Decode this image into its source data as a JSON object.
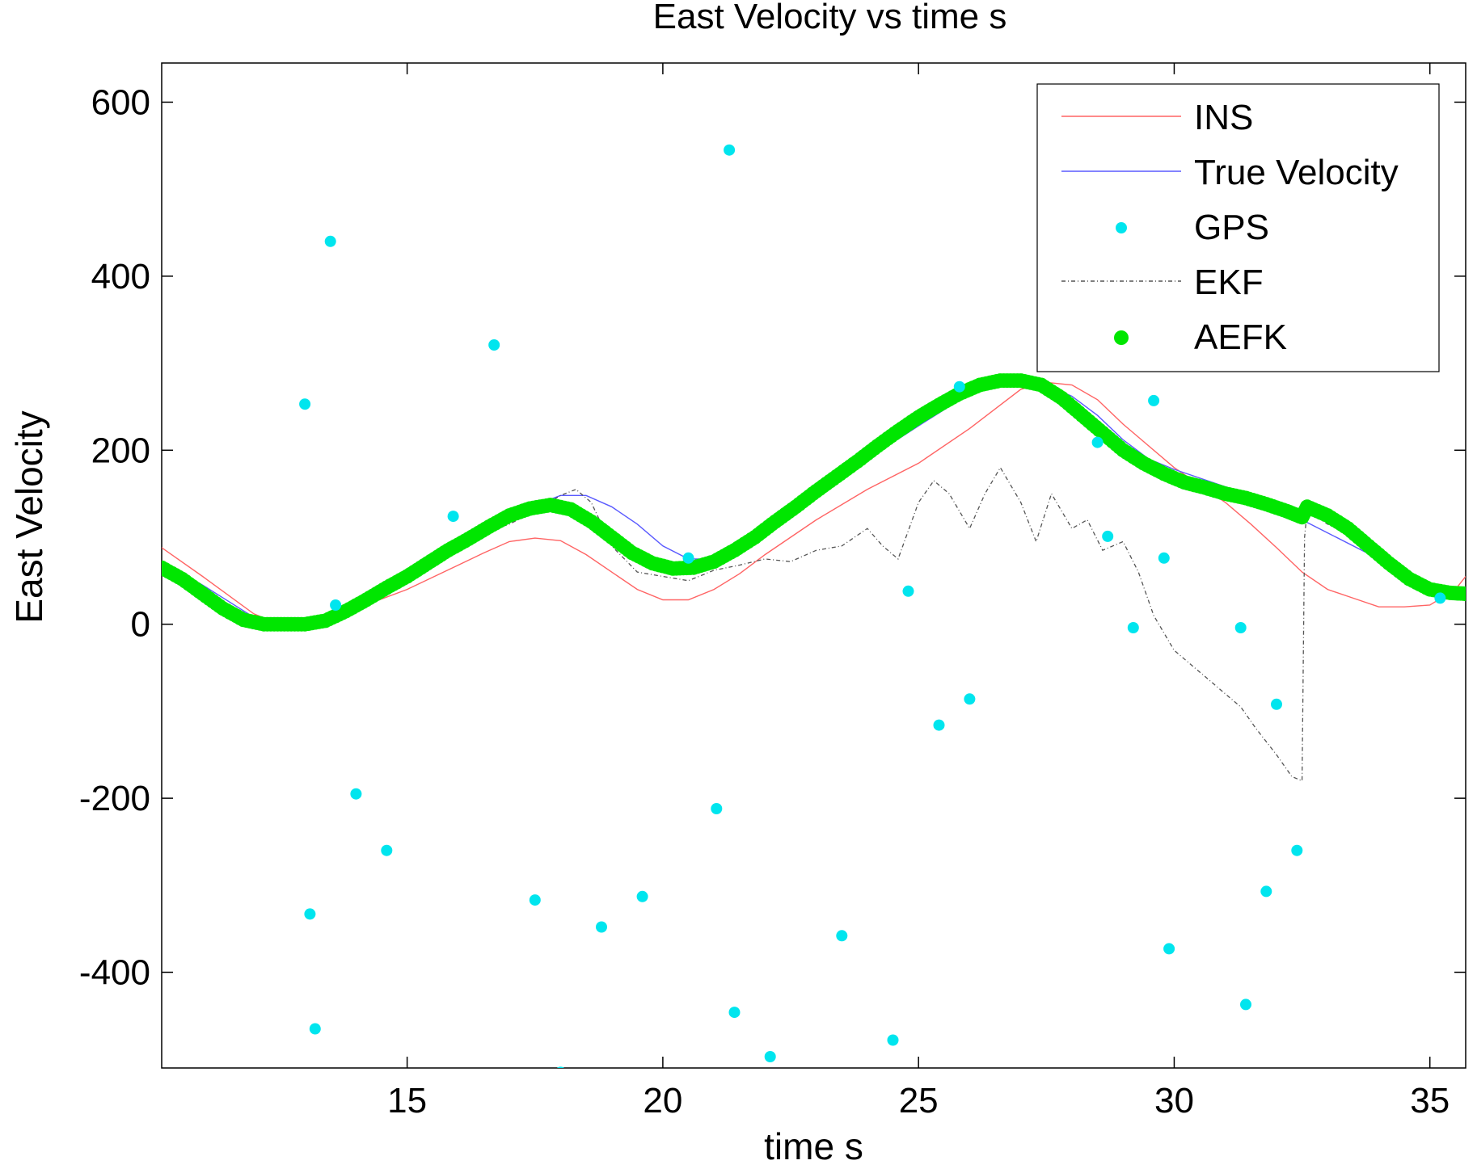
{
  "chart_data": {
    "type": "line",
    "title": "East Velocity vs time s",
    "xlabel": "time s",
    "ylabel": "East Velocity",
    "xlim": [
      10.2,
      35.7
    ],
    "ylim": [
      -510,
      645
    ],
    "xticks": [
      15,
      20,
      25,
      30,
      35
    ],
    "yticks": [
      600,
      400,
      200,
      0,
      -200,
      -400
    ],
    "grid": false,
    "legend_position": "top-right",
    "series": [
      {
        "name": "INS",
        "style": "line",
        "color": "#ff6464",
        "x": [
          10.2,
          11.0,
          12.0,
          12.5,
          13.0,
          13.5,
          14.0,
          15.0,
          16.0,
          16.5,
          17.0,
          17.5,
          18.0,
          18.5,
          19.0,
          19.5,
          20.0,
          20.5,
          21.0,
          21.5,
          22.0,
          23.0,
          24.0,
          25.0,
          26.0,
          27.0,
          27.5,
          28.0,
          28.5,
          29.0,
          30.0,
          31.0,
          31.5,
          32.0,
          32.5,
          33.0,
          33.5,
          34.0,
          34.5,
          35.0,
          35.5,
          35.7
        ],
        "y": [
          88,
          55,
          12,
          0,
          0,
          5,
          18,
          40,
          68,
          82,
          95,
          99,
          96,
          80,
          60,
          40,
          28,
          28,
          40,
          58,
          80,
          120,
          155,
          185,
          225,
          270,
          278,
          275,
          258,
          230,
          180,
          140,
          115,
          88,
          60,
          40,
          30,
          20,
          20,
          22,
          40,
          55
        ]
      },
      {
        "name": "True Velocity",
        "style": "line",
        "color": "#5a5aff",
        "x": [
          10.2,
          11.0,
          12.0,
          12.5,
          13.0,
          13.5,
          14.0,
          15.0,
          16.0,
          17.0,
          17.5,
          18.0,
          18.5,
          19.0,
          19.5,
          20.0,
          20.5,
          21.0,
          21.5,
          22.0,
          23.0,
          24.0,
          25.0,
          26.0,
          26.5,
          27.0,
          27.5,
          28.0,
          28.5,
          29.0,
          29.5,
          30.0,
          31.0,
          32.0,
          32.5,
          33.0,
          34.0,
          34.5,
          35.0,
          35.7
        ],
        "y": [
          72,
          45,
          8,
          0,
          0,
          5,
          18,
          50,
          90,
          125,
          137,
          148,
          148,
          135,
          115,
          90,
          75,
          75,
          85,
          100,
          145,
          190,
          228,
          265,
          275,
          278,
          275,
          262,
          240,
          212,
          190,
          178,
          158,
          140,
          120,
          105,
          75,
          55,
          40,
          35
        ]
      },
      {
        "name": "GPS",
        "style": "markers",
        "color": "#00e5ee",
        "x": [
          13.0,
          13.1,
          13.2,
          13.5,
          13.6,
          14.0,
          14.6,
          15.9,
          16.7,
          17.5,
          18.0,
          18.8,
          19.6,
          20.5,
          21.05,
          21.3,
          21.4,
          22.1,
          23.5,
          24.5,
          24.8,
          25.4,
          25.8,
          26.0,
          28.5,
          28.7,
          29.2,
          29.6,
          29.8,
          29.9,
          31.3,
          31.4,
          31.8,
          32.0,
          32.4,
          35.2
        ],
        "y": [
          253,
          -333,
          -465,
          440,
          22,
          -195,
          -260,
          124,
          321,
          -317,
          -515,
          -348,
          -313,
          76,
          -212,
          545,
          -446,
          -497,
          -358,
          -478,
          38,
          -116,
          273,
          -86,
          209,
          101,
          -4,
          257,
          76,
          -373,
          -4,
          -437,
          -307,
          -92,
          -260,
          30
        ]
      },
      {
        "name": "EKF",
        "style": "line-dashdot",
        "color": "#555555",
        "x": [
          10.2,
          11.0,
          12.0,
          13.0,
          14.0,
          15.0,
          16.0,
          17.0,
          17.5,
          18.0,
          18.3,
          18.6,
          19.0,
          19.5,
          20.0,
          20.5,
          21.0,
          21.5,
          22.0,
          22.5,
          23.0,
          23.5,
          24.0,
          24.3,
          24.6,
          25.0,
          25.3,
          25.6,
          26.0,
          26.3,
          26.6,
          27.0,
          27.3,
          27.6,
          28.0,
          28.3,
          28.6,
          29.0,
          29.3,
          29.6,
          30.0,
          30.3,
          30.6,
          31.0,
          31.3,
          31.6,
          32.0,
          32.3,
          32.5,
          32.55,
          32.6,
          33.0,
          34.0,
          35.0,
          35.7
        ],
        "y": [
          62,
          40,
          5,
          0,
          22,
          55,
          95,
          115,
          130,
          148,
          155,
          140,
          90,
          60,
          55,
          50,
          62,
          68,
          75,
          72,
          85,
          90,
          110,
          90,
          75,
          140,
          165,
          150,
          110,
          150,
          180,
          140,
          95,
          150,
          110,
          120,
          85,
          95,
          60,
          10,
          -30,
          -45,
          -60,
          -80,
          -95,
          -120,
          -150,
          -175,
          -180,
          100,
          130,
          115,
          85,
          40,
          35
        ]
      },
      {
        "name": "AEFK",
        "style": "markers",
        "color": "#00e600",
        "x": [
          10.2,
          10.6,
          11.0,
          11.4,
          11.8,
          12.2,
          12.6,
          13.0,
          13.4,
          13.8,
          14.2,
          14.6,
          15.0,
          15.4,
          15.8,
          16.2,
          16.6,
          17.0,
          17.4,
          17.8,
          18.2,
          18.6,
          19.0,
          19.4,
          19.8,
          20.2,
          20.6,
          21.0,
          21.4,
          21.8,
          22.2,
          22.6,
          23.0,
          23.4,
          23.8,
          24.2,
          24.6,
          25.0,
          25.4,
          25.8,
          26.2,
          26.6,
          27.0,
          27.4,
          27.8,
          28.2,
          28.6,
          29.0,
          29.4,
          29.8,
          30.2,
          30.6,
          31.0,
          31.4,
          31.8,
          32.2,
          32.5,
          32.6,
          33.0,
          33.4,
          33.8,
          34.2,
          34.6,
          35.0,
          35.4,
          35.7
        ],
        "y": [
          65,
          52,
          35,
          18,
          5,
          0,
          0,
          0,
          4,
          15,
          28,
          42,
          55,
          70,
          85,
          98,
          112,
          125,
          133,
          137,
          132,
          118,
          100,
          82,
          70,
          64,
          65,
          72,
          85,
          100,
          118,
          135,
          153,
          170,
          187,
          205,
          222,
          238,
          252,
          265,
          275,
          280,
          280,
          275,
          260,
          240,
          220,
          200,
          185,
          173,
          163,
          157,
          150,
          145,
          138,
          130,
          123,
          135,
          125,
          110,
          90,
          70,
          52,
          40,
          36,
          35
        ]
      }
    ]
  }
}
